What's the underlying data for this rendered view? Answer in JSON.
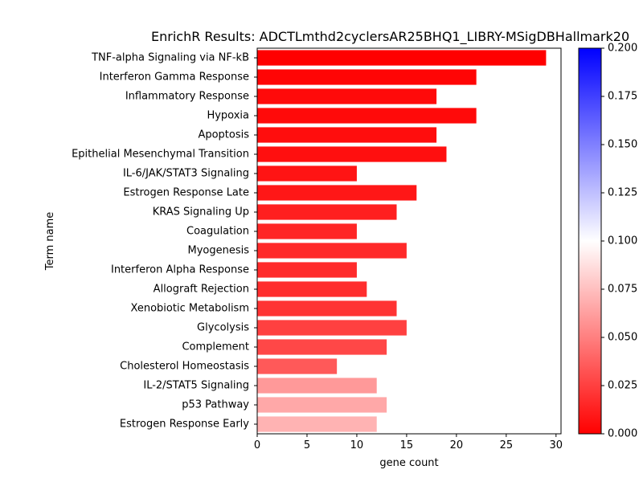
{
  "chart_data": {
    "type": "bar",
    "orientation": "horizontal",
    "title": "EnrichR Results: ADCTLmthd2cyclersAR25BHQ1_LIBRY-MSigDBHallmark20",
    "xlabel": "gene count",
    "ylabel": "Term name",
    "xlim": [
      0,
      30.5
    ],
    "x_ticks": [
      0,
      5,
      10,
      15,
      20,
      25,
      30
    ],
    "categories": [
      "TNF-alpha Signaling via NF-kB",
      "Interferon Gamma Response",
      "Inflammatory Response",
      "Hypoxia",
      "Apoptosis",
      "Epithelial Mesenchymal Transition",
      "IL-6/JAK/STAT3 Signaling",
      "Estrogen Response Late",
      "KRAS Signaling Up",
      "Coagulation",
      "Myogenesis",
      "Interferon Alpha Response",
      "Allograft Rejection",
      "Xenobiotic Metabolism",
      "Glycolysis",
      "Complement",
      "Cholesterol Homeostasis",
      "IL-2/STAT5 Signaling",
      "p53 Pathway",
      "Estrogen Response Early"
    ],
    "values": [
      29,
      22,
      18,
      22,
      18,
      19,
      10,
      16,
      14,
      10,
      15,
      10,
      11,
      14,
      15,
      13,
      8,
      12,
      13,
      12
    ],
    "color_values": [
      0.0001,
      0.002,
      0.004,
      0.004,
      0.005,
      0.006,
      0.008,
      0.009,
      0.012,
      0.015,
      0.016,
      0.017,
      0.018,
      0.02,
      0.025,
      0.028,
      0.035,
      0.06,
      0.066,
      0.07
    ],
    "colorbar": {
      "range": [
        0.0,
        0.2
      ],
      "ticks": [
        "0.000",
        "0.025",
        "0.050",
        "0.075",
        "0.100",
        "0.125",
        "0.150",
        "0.175",
        "0.200"
      ],
      "colors": [
        "#ff0000",
        "#ffffff",
        "#0000ff"
      ]
    },
    "grid": false,
    "legend": "none"
  }
}
